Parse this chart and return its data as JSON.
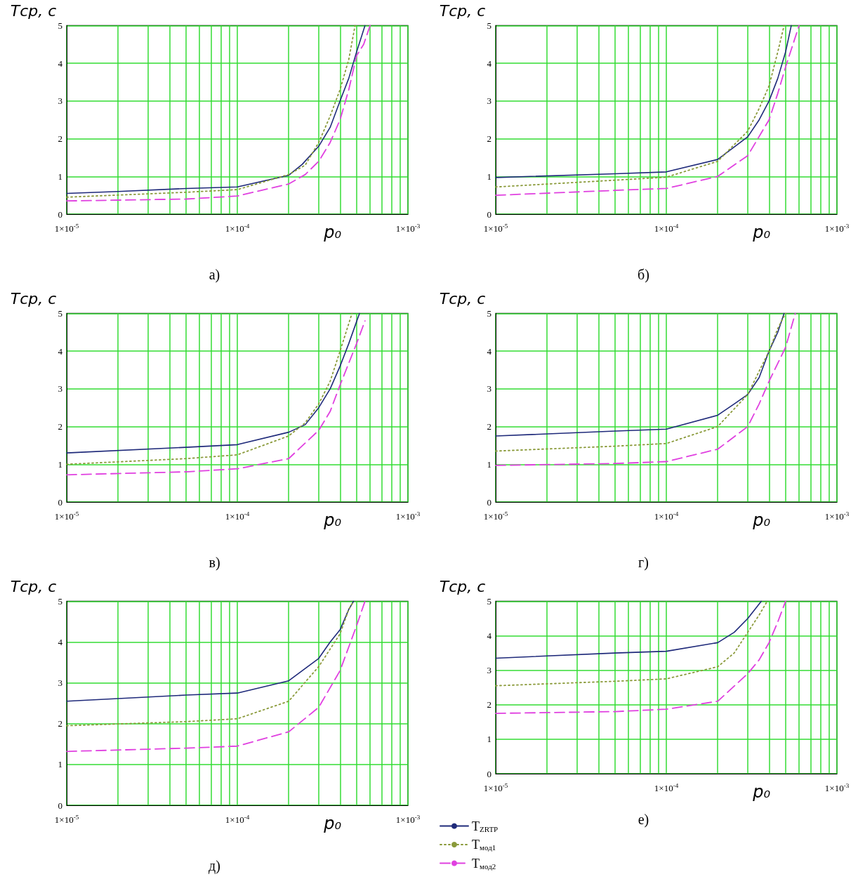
{
  "chart_data": [
    {
      "type": "line",
      "title": "а)",
      "xlabel": "p₀",
      "ylabel": "Тср, с",
      "log": "x",
      "grid": true,
      "xlim": [
        1e-05,
        0.001
      ],
      "ylim": [
        0,
        5
      ],
      "yticks": [
        0,
        1,
        2,
        3,
        4,
        5
      ],
      "xticks": [
        {
          "value": 1e-05,
          "label": "1×10$^{-5}$"
        },
        {
          "value": 2e-05,
          "label": null
        },
        {
          "value": 3e-05,
          "label": null
        },
        {
          "value": 4e-05,
          "label": null
        },
        {
          "value": 5e-05,
          "label": null
        },
        {
          "value": 6e-05,
          "label": null
        },
        {
          "value": 7e-05,
          "label": null
        },
        {
          "value": 8e-05,
          "label": null
        },
        {
          "value": 9e-05,
          "label": null
        },
        {
          "value": 0.0001,
          "label": "1×10$^{-4}$"
        },
        {
          "value": 0.0002,
          "label": null
        },
        {
          "value": 0.0003,
          "label": null
        },
        {
          "value": 0.0004,
          "label": null
        },
        {
          "value": 0.0005,
          "label": null
        },
        {
          "value": 0.0006,
          "label": null
        },
        {
          "value": 0.0007,
          "label": null
        },
        {
          "value": 0.0008,
          "label": null
        },
        {
          "value": 0.0009,
          "label": null
        },
        {
          "value": 0.001,
          "label": "1×10$^{-3}$"
        }
      ],
      "series": [
        {
          "color": "#1f2a7a",
          "line_style": "solid",
          "x": [
            1e-05,
            2e-05,
            5e-05,
            0.0001,
            0.0002,
            0.00024,
            0.0003,
            0.00035,
            0.0004,
            0.00045,
            0.0005,
            0.00056
          ],
          "values": [
            0.55,
            0.6,
            0.68,
            0.72,
            1.03,
            1.32,
            1.8,
            2.3,
            3.0,
            3.6,
            4.3,
            5.0
          ]
        },
        {
          "color": "#8a9a3a",
          "line_style": "dotted",
          "x": [
            1e-05,
            5e-05,
            0.0001,
            0.0002,
            0.00025,
            0.0003,
            0.00035,
            0.0004,
            0.00045,
            0.00049
          ],
          "values": [
            0.45,
            0.58,
            0.65,
            1.05,
            1.3,
            1.9,
            2.6,
            3.3,
            4.1,
            5.0
          ]
        },
        {
          "color": "#e040e0",
          "line_style": "dashed",
          "x": [
            1e-05,
            5e-05,
            0.0001,
            0.0002,
            0.00025,
            0.0003,
            0.00035,
            0.0004,
            0.00045,
            0.0005,
            0.00055,
            0.0006
          ],
          "values": [
            0.35,
            0.4,
            0.48,
            0.8,
            1.05,
            1.4,
            1.9,
            2.5,
            3.3,
            4.2,
            4.5,
            5.0
          ]
        }
      ]
    },
    {
      "type": "line",
      "title": "б)",
      "xlabel": "p₀",
      "ylabel": "Тср, с",
      "log": "x",
      "grid": true,
      "xlim": [
        1e-05,
        0.001
      ],
      "ylim": [
        0,
        5
      ],
      "yticks": [
        0,
        1,
        2,
        3,
        4,
        5
      ],
      "xticks": [
        {
          "value": 1e-05,
          "label": "1×10$^{-5}$"
        },
        {
          "value": 2e-05,
          "label": null
        },
        {
          "value": 3e-05,
          "label": null
        },
        {
          "value": 4e-05,
          "label": null
        },
        {
          "value": 5e-05,
          "label": null
        },
        {
          "value": 6e-05,
          "label": null
        },
        {
          "value": 7e-05,
          "label": null
        },
        {
          "value": 8e-05,
          "label": null
        },
        {
          "value": 9e-05,
          "label": null
        },
        {
          "value": 0.0001,
          "label": "1×10$^{-4}$"
        },
        {
          "value": 0.0002,
          "label": null
        },
        {
          "value": 0.0003,
          "label": null
        },
        {
          "value": 0.0004,
          "label": null
        },
        {
          "value": 0.0005,
          "label": null
        },
        {
          "value": 0.0006,
          "label": null
        },
        {
          "value": 0.0007,
          "label": null
        },
        {
          "value": 0.0008,
          "label": null
        },
        {
          "value": 0.0009,
          "label": null
        },
        {
          "value": 0.001,
          "label": "1×10$^{-3}$"
        }
      ],
      "series": [
        {
          "color": "#1f2a7a",
          "line_style": "solid",
          "x": [
            1e-05,
            5e-05,
            0.0001,
            0.0002,
            0.0003,
            0.00035,
            0.0004,
            0.00045,
            0.0005,
            0.00054
          ],
          "values": [
            0.97,
            1.07,
            1.12,
            1.45,
            2.05,
            2.5,
            3.0,
            3.6,
            4.3,
            5.0
          ]
        },
        {
          "color": "#8a9a3a",
          "line_style": "dotted",
          "x": [
            1e-05,
            5e-05,
            0.0001,
            0.0002,
            0.0003,
            0.00035,
            0.0004,
            0.00045,
            0.00049
          ],
          "values": [
            0.72,
            0.9,
            0.98,
            1.4,
            2.2,
            2.8,
            3.4,
            4.3,
            5.0
          ]
        },
        {
          "color": "#e040e0",
          "line_style": "dashed",
          "x": [
            1e-05,
            5e-05,
            0.0001,
            0.0002,
            0.0003,
            0.0004,
            0.00045,
            0.0005,
            0.0006
          ],
          "values": [
            0.5,
            0.63,
            0.68,
            1.0,
            1.55,
            2.5,
            3.2,
            3.9,
            5.0
          ]
        }
      ]
    },
    {
      "type": "line",
      "title": "в)",
      "xlabel": "p₀",
      "ylabel": "Тср, с",
      "log": "x",
      "grid": true,
      "xlim": [
        1e-05,
        0.001
      ],
      "ylim": [
        0,
        5
      ],
      "yticks": [
        0,
        1,
        2,
        3,
        4,
        5
      ],
      "xticks": [
        {
          "value": 1e-05,
          "label": "1×10$^{-5}$"
        },
        {
          "value": 2e-05,
          "label": null
        },
        {
          "value": 3e-05,
          "label": null
        },
        {
          "value": 4e-05,
          "label": null
        },
        {
          "value": 5e-05,
          "label": null
        },
        {
          "value": 6e-05,
          "label": null
        },
        {
          "value": 7e-05,
          "label": null
        },
        {
          "value": 8e-05,
          "label": null
        },
        {
          "value": 9e-05,
          "label": null
        },
        {
          "value": 0.0001,
          "label": "1×10$^{-4}$"
        },
        {
          "value": 0.0002,
          "label": null
        },
        {
          "value": 0.0003,
          "label": null
        },
        {
          "value": 0.0004,
          "label": null
        },
        {
          "value": 0.0005,
          "label": null
        },
        {
          "value": 0.0006,
          "label": null
        },
        {
          "value": 0.0007,
          "label": null
        },
        {
          "value": 0.0008,
          "label": null
        },
        {
          "value": 0.0009,
          "label": null
        },
        {
          "value": 0.001,
          "label": "1×10$^{-3}$"
        }
      ],
      "series": [
        {
          "color": "#1f2a7a",
          "line_style": "solid",
          "x": [
            1e-05,
            5e-05,
            0.0001,
            0.0002,
            0.00025,
            0.0003,
            0.00035,
            0.0004,
            0.00045,
            0.00052
          ],
          "values": [
            1.3,
            1.45,
            1.52,
            1.85,
            2.05,
            2.5,
            3.0,
            3.6,
            4.2,
            5.0
          ]
        },
        {
          "color": "#8a9a3a",
          "line_style": "dotted",
          "x": [
            1e-05,
            5e-05,
            0.0001,
            0.0002,
            0.00025,
            0.0003,
            0.00035,
            0.0004,
            0.00047
          ],
          "values": [
            1.0,
            1.15,
            1.25,
            1.75,
            2.1,
            2.6,
            3.2,
            4.0,
            5.0
          ]
        },
        {
          "color": "#e040e0",
          "line_style": "dashed",
          "x": [
            1e-05,
            5e-05,
            0.0001,
            0.0002,
            0.0003,
            0.00035,
            0.0004,
            0.0005,
            0.00056
          ],
          "values": [
            0.72,
            0.8,
            0.88,
            1.15,
            1.9,
            2.4,
            3.1,
            4.2,
            4.8
          ]
        }
      ]
    },
    {
      "type": "line",
      "title": "г)",
      "xlabel": "p₀",
      "ylabel": "Тср, с",
      "log": "x",
      "grid": true,
      "xlim": [
        1e-05,
        0.001
      ],
      "ylim": [
        0,
        5
      ],
      "yticks": [
        0,
        1,
        2,
        3,
        4,
        5
      ],
      "xticks": [
        {
          "value": 1e-05,
          "label": "1×10$^{-5}$"
        },
        {
          "value": 2e-05,
          "label": null
        },
        {
          "value": 3e-05,
          "label": null
        },
        {
          "value": 4e-05,
          "label": null
        },
        {
          "value": 5e-05,
          "label": null
        },
        {
          "value": 6e-05,
          "label": null
        },
        {
          "value": 7e-05,
          "label": null
        },
        {
          "value": 8e-05,
          "label": null
        },
        {
          "value": 9e-05,
          "label": null
        },
        {
          "value": 0.0001,
          "label": "1×10$^{-4}$"
        },
        {
          "value": 0.0002,
          "label": null
        },
        {
          "value": 0.0003,
          "label": null
        },
        {
          "value": 0.0004,
          "label": null
        },
        {
          "value": 0.0005,
          "label": null
        },
        {
          "value": 0.0006,
          "label": null
        },
        {
          "value": 0.0007,
          "label": null
        },
        {
          "value": 0.0008,
          "label": null
        },
        {
          "value": 0.0009,
          "label": null
        },
        {
          "value": 0.001,
          "label": "1×10$^{-3}$"
        }
      ],
      "series": [
        {
          "color": "#1f2a7a",
          "line_style": "solid",
          "x": [
            1e-05,
            5e-05,
            0.0001,
            0.0002,
            0.00025,
            0.0003,
            0.00035,
            0.0004,
            0.00045,
            0.00049
          ],
          "values": [
            1.75,
            1.88,
            1.93,
            2.3,
            2.6,
            2.85,
            3.3,
            4.0,
            4.5,
            5.0
          ]
        },
        {
          "color": "#8a9a3a",
          "line_style": "dotted",
          "x": [
            1e-05,
            5e-05,
            0.0001,
            0.0002,
            0.0003,
            0.0004,
            0.00045,
            0.0005
          ],
          "values": [
            1.35,
            1.48,
            1.55,
            2.0,
            2.85,
            4.0,
            4.6,
            5.0
          ]
        },
        {
          "color": "#e040e0",
          "line_style": "dashed",
          "x": [
            1e-05,
            5e-05,
            0.0001,
            0.0002,
            0.0003,
            0.00035,
            0.0004,
            0.0005,
            0.00057
          ],
          "values": [
            0.97,
            1.02,
            1.07,
            1.4,
            2.0,
            2.6,
            3.2,
            4.1,
            5.0
          ]
        }
      ]
    },
    {
      "type": "line",
      "title": "д)",
      "xlabel": "p₀",
      "ylabel": "Тср, с",
      "log": "x",
      "grid": true,
      "xlim": [
        1e-05,
        0.001
      ],
      "ylim": [
        0,
        5
      ],
      "yticks": [
        0,
        1,
        2,
        3,
        4,
        5
      ],
      "xticks": [
        {
          "value": 1e-05,
          "label": "1×10$^{-5}$"
        },
        {
          "value": 2e-05,
          "label": null
        },
        {
          "value": 3e-05,
          "label": null
        },
        {
          "value": 4e-05,
          "label": null
        },
        {
          "value": 5e-05,
          "label": null
        },
        {
          "value": 6e-05,
          "label": null
        },
        {
          "value": 7e-05,
          "label": null
        },
        {
          "value": 8e-05,
          "label": null
        },
        {
          "value": 9e-05,
          "label": null
        },
        {
          "value": 0.0001,
          "label": "1×10$^{-4}$"
        },
        {
          "value": 0.0002,
          "label": null
        },
        {
          "value": 0.0003,
          "label": null
        },
        {
          "value": 0.0004,
          "label": null
        },
        {
          "value": 0.0005,
          "label": null
        },
        {
          "value": 0.0006,
          "label": null
        },
        {
          "value": 0.0007,
          "label": null
        },
        {
          "value": 0.0008,
          "label": null
        },
        {
          "value": 0.0009,
          "label": null
        },
        {
          "value": 0.001,
          "label": "1×10$^{-3}$"
        }
      ],
      "series": [
        {
          "color": "#1f2a7a",
          "line_style": "solid",
          "x": [
            1e-05,
            5e-05,
            0.0001,
            0.0002,
            0.0003,
            0.00035,
            0.0004,
            0.00045,
            0.00048
          ],
          "values": [
            2.55,
            2.7,
            2.75,
            3.05,
            3.6,
            4.0,
            4.3,
            4.8,
            5.0
          ]
        },
        {
          "color": "#8a9a3a",
          "line_style": "dotted",
          "x": [
            1e-05,
            5e-05,
            0.0001,
            0.0002,
            0.0003,
            0.0004,
            0.00045,
            0.00048
          ],
          "values": [
            1.95,
            2.05,
            2.12,
            2.55,
            3.4,
            4.2,
            4.8,
            5.0
          ]
        },
        {
          "color": "#e040e0",
          "line_style": "dashed",
          "x": [
            1e-05,
            5e-05,
            0.0001,
            0.0002,
            0.0003,
            0.0004,
            0.0005,
            0.00056
          ],
          "values": [
            1.32,
            1.4,
            1.45,
            1.8,
            2.4,
            3.3,
            4.4,
            5.0
          ]
        }
      ]
    },
    {
      "type": "line",
      "title": "е)",
      "xlabel": "p₀",
      "ylabel": "Тср, с",
      "log": "x",
      "grid": true,
      "legend": "bottom left",
      "xlim": [
        1e-05,
        0.001
      ],
      "ylim": [
        0,
        5
      ],
      "yticks": [
        0,
        1,
        2,
        3,
        4,
        5
      ],
      "xticks": [
        {
          "value": 1e-05,
          "label": "1×10$^{-5}$"
        },
        {
          "value": 2e-05,
          "label": null
        },
        {
          "value": 3e-05,
          "label": null
        },
        {
          "value": 4e-05,
          "label": null
        },
        {
          "value": 5e-05,
          "label": null
        },
        {
          "value": 6e-05,
          "label": null
        },
        {
          "value": 7e-05,
          "label": null
        },
        {
          "value": 8e-05,
          "label": null
        },
        {
          "value": 9e-05,
          "label": null
        },
        {
          "value": 0.0001,
          "label": "1×10$^{-4}$"
        },
        {
          "value": 0.0002,
          "label": null
        },
        {
          "value": 0.0003,
          "label": null
        },
        {
          "value": 0.0004,
          "label": null
        },
        {
          "value": 0.0005,
          "label": null
        },
        {
          "value": 0.0006,
          "label": null
        },
        {
          "value": 0.0007,
          "label": null
        },
        {
          "value": 0.0008,
          "label": null
        },
        {
          "value": 0.0009,
          "label": null
        },
        {
          "value": 0.001,
          "label": "1×10$^{-3}$"
        }
      ],
      "series": [
        {
          "name": "T$_{ZRTP}$",
          "color": "#1f2a7a",
          "line_style": "solid",
          "x": [
            1e-05,
            5e-05,
            0.0001,
            0.0002,
            0.00025,
            0.0003,
            0.00036
          ],
          "values": [
            3.35,
            3.5,
            3.55,
            3.8,
            4.1,
            4.5,
            5.0
          ]
        },
        {
          "name": "T$_{мод1}$",
          "color": "#8a9a3a",
          "line_style": "dotted",
          "x": [
            1e-05,
            5e-05,
            0.0001,
            0.0002,
            0.00025,
            0.0003,
            0.00035,
            0.00039
          ],
          "values": [
            2.55,
            2.68,
            2.75,
            3.1,
            3.5,
            4.1,
            4.6,
            5.0
          ]
        },
        {
          "name": "T$_{мод2}$",
          "color": "#e040e0",
          "line_style": "dashed",
          "x": [
            1e-05,
            5e-05,
            0.0001,
            0.0002,
            0.0003,
            0.00035,
            0.0004,
            0.00045,
            0.0005
          ],
          "values": [
            1.75,
            1.8,
            1.87,
            2.1,
            2.9,
            3.3,
            3.8,
            4.4,
            5.0
          ]
        }
      ]
    }
  ]
}
